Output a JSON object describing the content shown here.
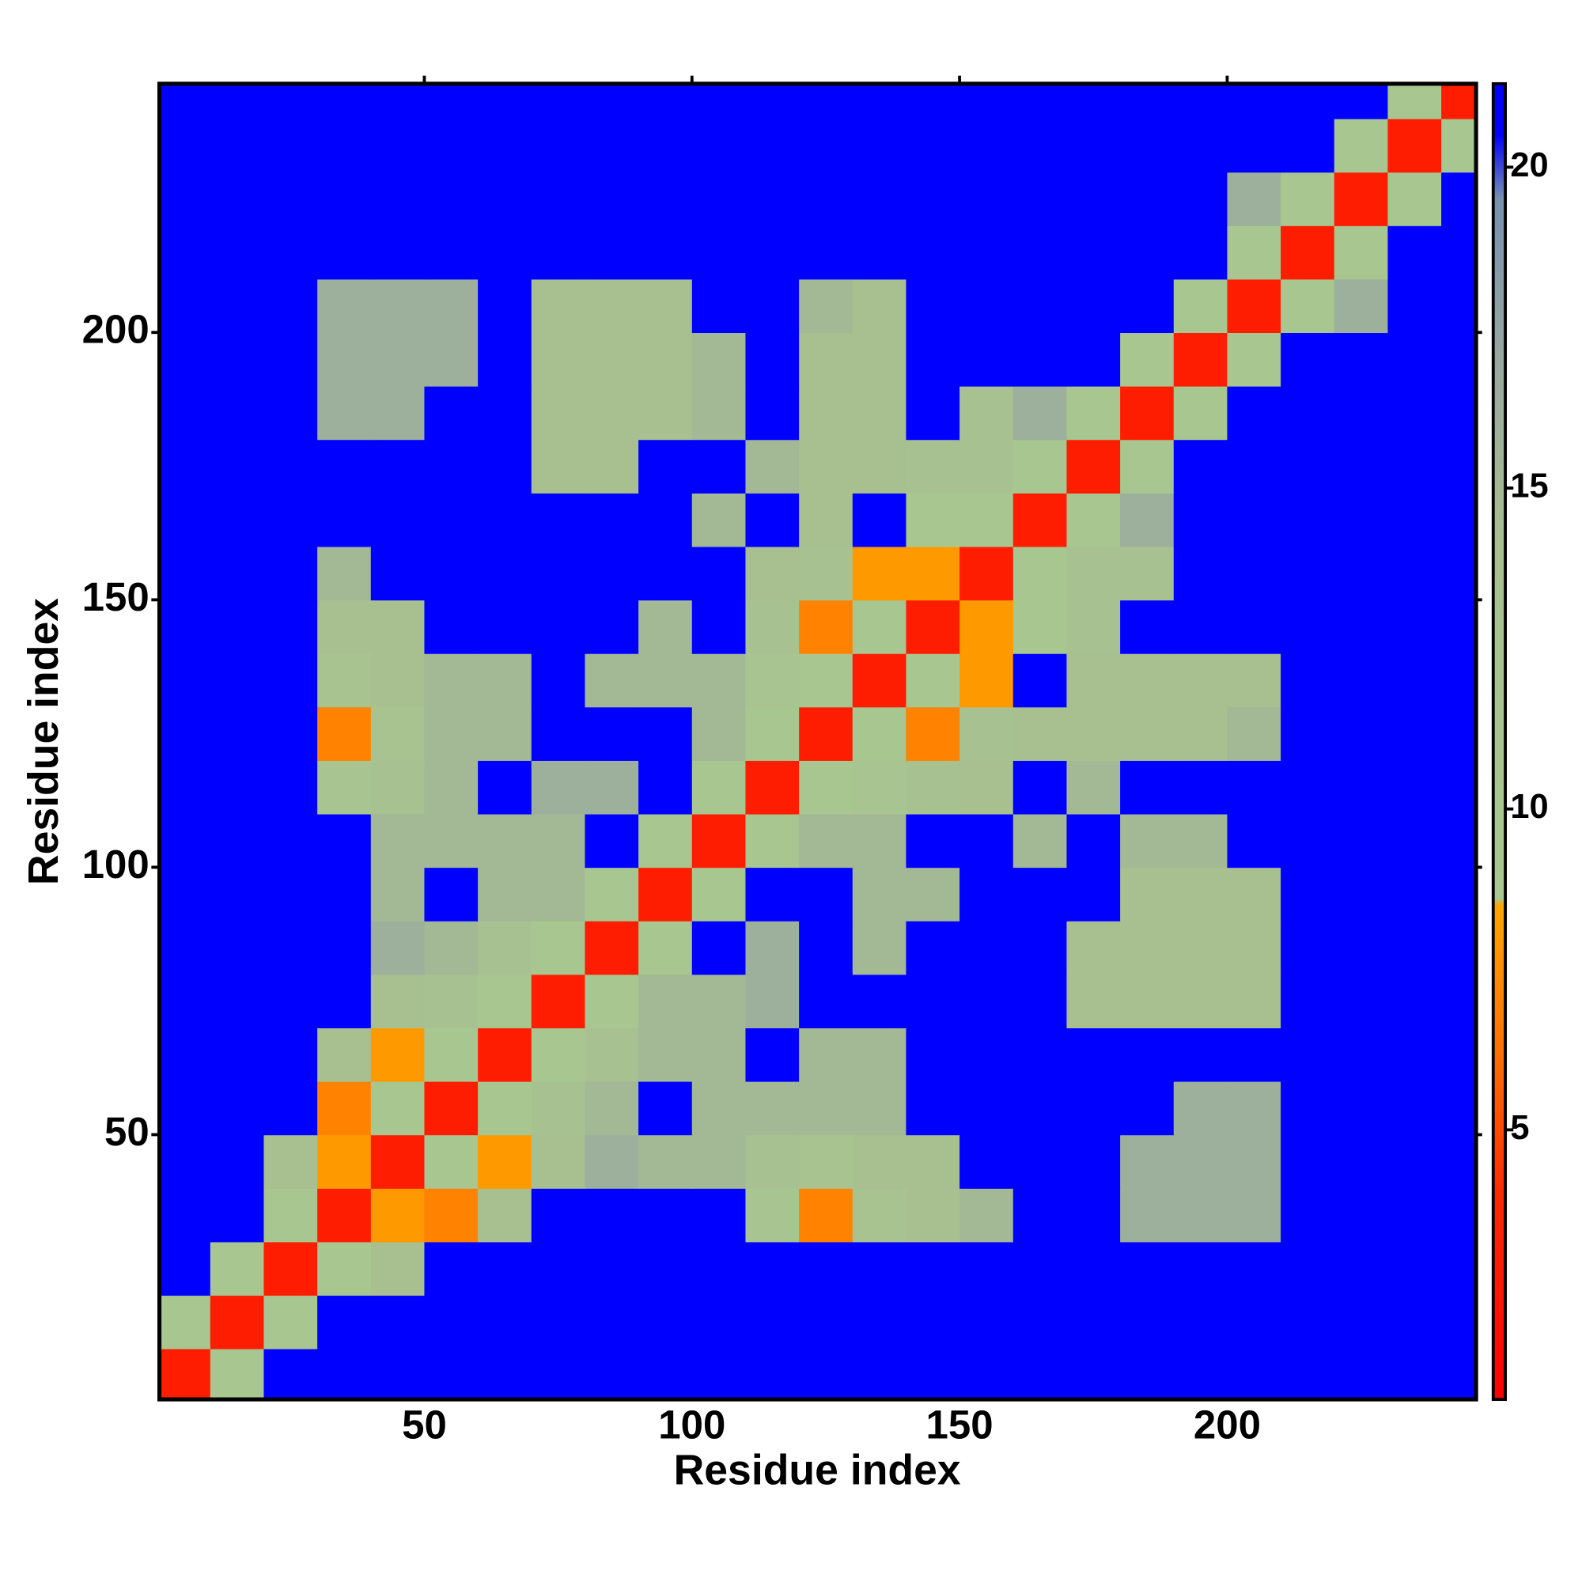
{
  "chart_data": {
    "type": "heatmap",
    "xlabel": "Residue index",
    "ylabel": "Residue index",
    "x": [
      5,
      15,
      25,
      35,
      45,
      55,
      65,
      75,
      85,
      95,
      105,
      115,
      125,
      135,
      145,
      155,
      165,
      175,
      185,
      195,
      205,
      215,
      225,
      235,
      245
    ],
    "y": [
      5,
      15,
      25,
      35,
      45,
      55,
      65,
      75,
      85,
      95,
      105,
      115,
      125,
      135,
      145,
      155,
      165,
      175,
      185,
      195,
      205,
      215,
      225,
      235,
      245
    ],
    "z": [
      [
        3,
        9,
        21,
        21,
        21,
        21,
        21,
        21,
        21,
        21,
        21,
        21,
        21,
        21,
        21,
        21,
        21,
        21,
        21,
        21,
        21,
        21,
        21,
        21,
        21
      ],
      [
        9,
        3,
        9,
        21,
        21,
        21,
        21,
        21,
        21,
        21,
        21,
        21,
        21,
        21,
        21,
        21,
        21,
        21,
        21,
        21,
        21,
        21,
        21,
        21,
        21
      ],
      [
        21,
        9,
        3,
        9,
        14,
        21,
        21,
        21,
        21,
        21,
        21,
        21,
        21,
        21,
        21,
        21,
        21,
        21,
        21,
        21,
        21,
        21,
        21,
        21,
        21
      ],
      [
        21,
        21,
        9,
        3,
        8,
        7,
        14,
        21,
        21,
        21,
        21,
        11,
        7,
        12,
        14,
        15,
        21,
        21,
        16,
        16,
        16,
        21,
        21,
        21,
        21
      ],
      [
        21,
        21,
        14,
        8,
        3,
        10,
        8,
        14,
        16,
        15,
        15,
        13,
        12,
        14,
        14,
        21,
        21,
        21,
        16,
        16,
        16,
        21,
        21,
        21,
        21
      ],
      [
        21,
        21,
        21,
        7,
        10,
        3,
        9,
        13,
        15,
        21,
        15,
        15,
        15,
        15,
        21,
        21,
        21,
        21,
        21,
        16,
        16,
        21,
        21,
        21,
        21
      ],
      [
        21,
        21,
        21,
        14,
        8,
        9,
        3,
        10,
        13,
        15,
        15,
        21,
        15,
        15,
        21,
        21,
        21,
        21,
        21,
        21,
        21,
        21,
        21,
        21,
        21
      ],
      [
        21,
        21,
        21,
        21,
        14,
        13,
        10,
        3,
        10,
        15,
        15,
        16,
        21,
        21,
        21,
        21,
        21,
        14,
        14,
        14,
        14,
        21,
        21,
        21,
        21
      ],
      [
        21,
        21,
        21,
        21,
        16,
        15,
        13,
        10,
        3,
        10,
        21,
        16,
        21,
        15,
        21,
        21,
        21,
        14,
        14,
        14,
        14,
        21,
        21,
        21,
        21
      ],
      [
        21,
        21,
        21,
        21,
        15,
        21,
        15,
        15,
        10,
        3,
        10,
        21,
        21,
        15,
        15,
        21,
        21,
        21,
        14,
        14,
        14,
        21,
        21,
        21,
        21
      ],
      [
        21,
        21,
        21,
        21,
        15,
        15,
        15,
        15,
        21,
        10,
        3,
        10,
        15,
        15,
        21,
        21,
        15,
        21,
        15,
        15,
        21,
        21,
        21,
        21,
        21
      ],
      [
        21,
        21,
        21,
        11,
        13,
        15,
        21,
        16,
        16,
        21,
        10,
        3,
        10,
        11,
        13,
        14,
        21,
        15,
        21,
        21,
        21,
        21,
        21,
        21,
        21
      ],
      [
        21,
        21,
        21,
        7,
        12,
        15,
        15,
        21,
        21,
        21,
        15,
        10,
        3,
        9,
        7,
        13,
        14,
        14,
        14,
        14,
        15,
        21,
        21,
        21,
        21
      ],
      [
        21,
        21,
        21,
        12,
        14,
        15,
        15,
        21,
        15,
        15,
        15,
        11,
        9,
        3,
        9,
        8,
        21,
        14,
        14,
        14,
        14,
        21,
        21,
        21,
        21
      ],
      [
        21,
        21,
        21,
        14,
        14,
        21,
        21,
        21,
        21,
        15,
        21,
        13,
        7,
        9,
        3,
        8,
        9,
        13,
        21,
        21,
        21,
        21,
        21,
        21,
        21
      ],
      [
        21,
        21,
        21,
        15,
        21,
        21,
        21,
        21,
        21,
        21,
        21,
        14,
        13,
        8,
        8,
        3,
        10,
        13,
        13,
        21,
        21,
        21,
        21,
        21,
        21
      ],
      [
        21,
        21,
        21,
        21,
        21,
        21,
        21,
        21,
        21,
        21,
        15,
        21,
        14,
        21,
        9,
        10,
        3,
        10,
        16,
        21,
        21,
        21,
        21,
        21,
        21
      ],
      [
        21,
        21,
        21,
        21,
        21,
        21,
        21,
        14,
        14,
        21,
        21,
        15,
        14,
        14,
        13,
        13,
        10,
        3,
        10,
        21,
        21,
        21,
        21,
        21,
        21
      ],
      [
        21,
        21,
        21,
        16,
        16,
        21,
        21,
        14,
        14,
        14,
        15,
        21,
        14,
        14,
        21,
        13,
        16,
        10,
        3,
        10,
        21,
        21,
        21,
        21,
        21
      ],
      [
        21,
        21,
        21,
        16,
        16,
        16,
        21,
        14,
        14,
        14,
        15,
        21,
        14,
        14,
        21,
        21,
        21,
        21,
        10,
        3,
        9,
        21,
        21,
        21,
        21
      ],
      [
        21,
        21,
        21,
        16,
        16,
        16,
        21,
        14,
        14,
        14,
        21,
        21,
        15,
        14,
        21,
        21,
        21,
        21,
        21,
        9,
        3,
        9,
        16,
        21,
        21
      ],
      [
        21,
        21,
        21,
        21,
        21,
        21,
        21,
        21,
        21,
        21,
        21,
        21,
        21,
        21,
        21,
        21,
        21,
        21,
        21,
        21,
        9,
        3,
        10,
        21,
        21
      ],
      [
        21,
        21,
        21,
        21,
        21,
        21,
        21,
        21,
        21,
        21,
        21,
        21,
        21,
        21,
        21,
        21,
        21,
        21,
        21,
        21,
        16,
        10,
        3,
        10,
        21
      ],
      [
        21,
        21,
        21,
        21,
        21,
        21,
        21,
        21,
        21,
        21,
        21,
        21,
        21,
        21,
        21,
        21,
        21,
        21,
        21,
        21,
        21,
        21,
        10,
        3,
        10
      ],
      [
        21,
        21,
        21,
        21,
        21,
        21,
        21,
        21,
        21,
        21,
        21,
        21,
        21,
        21,
        21,
        21,
        21,
        21,
        21,
        21,
        21,
        21,
        21,
        10,
        3
      ]
    ],
    "xlim": [
      0.5,
      246.5
    ],
    "ylim": [
      0.5,
      246.5
    ],
    "xticks": [
      50,
      100,
      150,
      200
    ],
    "yticks": [
      50,
      100,
      150,
      200
    ],
    "colorbar": {
      "lim": [
        0.8,
        21.3
      ],
      "ticks": [
        5,
        10,
        15,
        20
      ]
    },
    "colorscale": [
      {
        "value": 0.8,
        "color": "#ff0000"
      },
      {
        "value": 4,
        "color": "#ff2a00"
      },
      {
        "value": 6,
        "color": "#ff6a00"
      },
      {
        "value": 8.5,
        "color": "#ffa500"
      },
      {
        "value": 8.6,
        "color": "#a8c890"
      },
      {
        "value": 14,
        "color": "#a8c090"
      },
      {
        "value": 17,
        "color": "#98a8a0"
      },
      {
        "value": 19.5,
        "color": "#7890b0"
      },
      {
        "value": 20.5,
        "color": "#0000ff"
      },
      {
        "value": 21.3,
        "color": "#0000ff"
      }
    ]
  }
}
